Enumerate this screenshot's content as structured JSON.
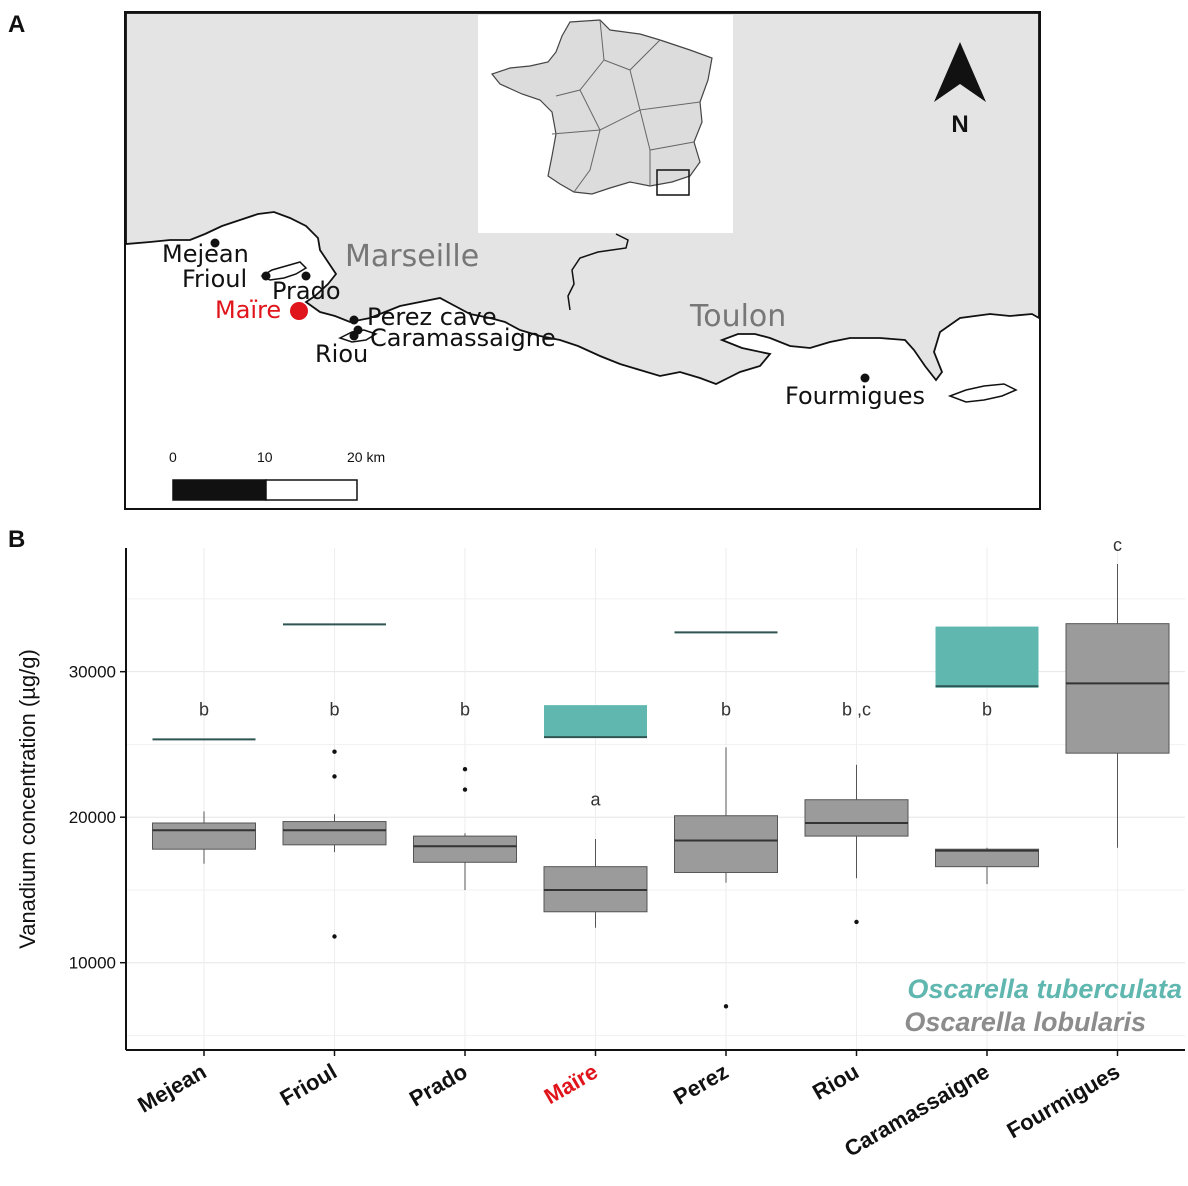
{
  "panel_a": {
    "label": "A",
    "north_label": "N",
    "cities": [
      {
        "name": "Marseille"
      },
      {
        "name": "Toulon"
      }
    ],
    "sites": [
      {
        "name": "Mejean",
        "highlight": false
      },
      {
        "name": "Frioul",
        "highlight": false
      },
      {
        "name": "Prado",
        "highlight": false
      },
      {
        "name": "Maïre",
        "highlight": true
      },
      {
        "name": "Perez cave",
        "highlight": false
      },
      {
        "name": "Caramassaigne",
        "highlight": false
      },
      {
        "name": "Riou",
        "highlight": false
      },
      {
        "name": "Fourmigues",
        "highlight": false
      }
    ],
    "scale_bar": {
      "ticks": [
        "0",
        "10",
        "20 km"
      ]
    }
  },
  "panel_b": {
    "label": "B"
  },
  "chart_data": {
    "type": "box",
    "ylabel": "Vanadium concentration (µg/g)",
    "ylim": [
      4000,
      38500
    ],
    "yticks": [
      10000,
      20000,
      30000
    ],
    "categories": [
      "Mejean",
      "Frioul",
      "Prado",
      "Maïre",
      "Perez",
      "Riou",
      "Caramassaigne",
      "Fourmigues"
    ],
    "highlight_category": "Maïre",
    "highlight_color": "#e0141b",
    "grid": true,
    "legend_position": "bottom-right",
    "series": [
      {
        "name": "Oscarella tuberculata",
        "color": "#5fb7b0",
        "boxes": [
          {
            "category": "Mejean",
            "q1": 25350,
            "median": 25350,
            "q3": 25350
          },
          {
            "category": "Frioul",
            "q1": 33250,
            "median": 33250,
            "q3": 33250
          },
          {
            "category": "Maïre",
            "q1": 25500,
            "median": 25500,
            "q3": 27700
          },
          {
            "category": "Perez",
            "q1": 32650,
            "median": 32700,
            "q3": 32750
          },
          {
            "category": "Caramassaigne",
            "q1": 28900,
            "median": 29000,
            "q3": 33100
          }
        ]
      },
      {
        "name": "Oscarella lobularis",
        "color": "#9b9b9b",
        "boxes": [
          {
            "category": "Mejean",
            "min": 16800,
            "q1": 17800,
            "median": 19100,
            "q3": 19600,
            "max": 20400,
            "outliers": []
          },
          {
            "category": "Frioul",
            "min": 17600,
            "q1": 18100,
            "median": 19100,
            "q3": 19700,
            "max": 20200,
            "outliers": [
              24500,
              22800,
              11800
            ]
          },
          {
            "category": "Prado",
            "min": 15000,
            "q1": 16900,
            "median": 18000,
            "q3": 18700,
            "max": 18900,
            "outliers": [
              23300,
              21900
            ]
          },
          {
            "category": "Maïre",
            "min": 12400,
            "q1": 13500,
            "median": 15000,
            "q3": 16600,
            "max": 18500,
            "outliers": []
          },
          {
            "category": "Perez",
            "min": 15500,
            "q1": 16200,
            "median": 18400,
            "q3": 20100,
            "max": 24800,
            "outliers": [
              7000
            ]
          },
          {
            "category": "Riou",
            "min": 15800,
            "q1": 18700,
            "median": 19600,
            "q3": 21200,
            "max": 23600,
            "outliers": [
              12800
            ]
          },
          {
            "category": "Caramassaigne",
            "min": 15400,
            "q1": 16600,
            "median": 17700,
            "q3": 17800,
            "max": 17900,
            "outliers": []
          },
          {
            "category": "Fourmigues",
            "min": 17900,
            "q1": 24400,
            "median": 29200,
            "q3": 33300,
            "max": 37400,
            "outliers": []
          }
        ]
      }
    ],
    "letters": [
      {
        "category": "Mejean",
        "text": "b",
        "y": 27000
      },
      {
        "category": "Frioul",
        "text": "b",
        "y": 27000
      },
      {
        "category": "Prado",
        "text": "b",
        "y": 27000
      },
      {
        "category": "Maïre",
        "text": "a",
        "y": 20800
      },
      {
        "category": "Perez",
        "text": "b",
        "y": 27000
      },
      {
        "category": "Riou",
        "text": "b ,c",
        "y": 27000
      },
      {
        "category": "Caramassaigne",
        "text": "b",
        "y": 27000
      },
      {
        "category": "Fourmigues",
        "text": "c",
        "y": 38300
      }
    ]
  }
}
